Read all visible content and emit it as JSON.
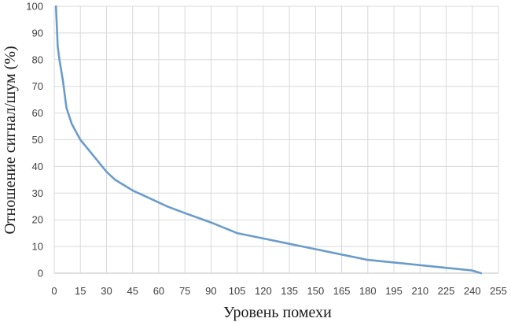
{
  "chart_data": {
    "type": "line",
    "title": "",
    "xlabel": "Уровень помехи",
    "ylabel": "Отношение сигнал/шум (%)",
    "xlim": [
      0,
      255
    ],
    "ylim": [
      0,
      100
    ],
    "xticks": [
      0,
      15,
      30,
      45,
      60,
      75,
      90,
      105,
      120,
      135,
      150,
      165,
      180,
      195,
      210,
      225,
      240,
      255
    ],
    "yticks": [
      0,
      10,
      20,
      30,
      40,
      50,
      60,
      70,
      80,
      90,
      100
    ],
    "grid": true,
    "legend": "none",
    "series": [
      {
        "color": "#6a9ccb",
        "x": [
          1,
          2,
          3,
          5,
          7,
          10,
          15,
          20,
          25,
          30,
          35,
          45,
          55,
          65,
          75,
          90,
          105,
          120,
          135,
          150,
          165,
          180,
          195,
          210,
          225,
          240,
          245
        ],
        "y": [
          100,
          85,
          80,
          72,
          62,
          56,
          50,
          46,
          42,
          38,
          35,
          31,
          28,
          25,
          22.5,
          19,
          15,
          13,
          11,
          9,
          7,
          5,
          4,
          3,
          2,
          1,
          0
        ]
      }
    ]
  }
}
